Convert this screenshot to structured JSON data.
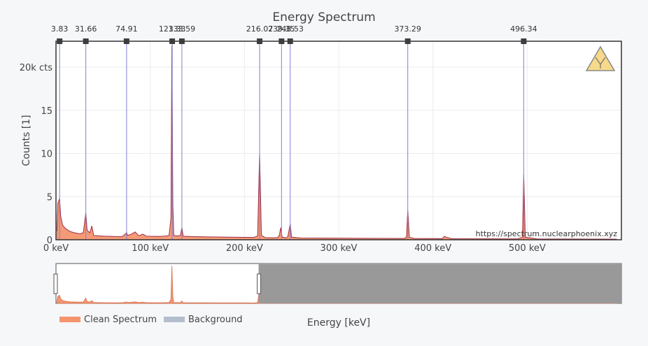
{
  "chart_data": {
    "type": "area",
    "title": "Energy Spectrum",
    "xlabel": "Energy [keV]",
    "ylabel": "Counts [1]",
    "xlim": [
      0,
      600
    ],
    "ylim": [
      0,
      23000
    ],
    "x_ticks": [
      0,
      100,
      200,
      300,
      400,
      500
    ],
    "x_tick_labels": [
      "0 keV",
      "100 keV",
      "200 keV",
      "300 keV",
      "400 keV",
      "500 keV"
    ],
    "y_ticks": [
      0,
      5000,
      10000,
      15000,
      20000
    ],
    "y_tick_labels": [
      "0",
      "5",
      "10",
      "15",
      "20k cts"
    ],
    "grid": true,
    "legend_position": "bottom-left",
    "watermark": "https://spectrum.nuclearphoenix.xyz",
    "series": [
      {
        "name": "Clean Spectrum",
        "color": "#f4956f",
        "x": [
          1,
          2,
          3.83,
          5,
          7,
          10,
          15,
          20,
          25,
          29,
          31.66,
          33,
          36,
          38,
          40,
          45,
          50,
          60,
          70,
          74,
          74.91,
          76,
          80,
          84,
          88,
          92,
          96,
          100,
          110,
          115,
          120,
          122,
          123,
          124,
          125,
          128,
          132,
          133.59,
          135,
          140,
          150,
          160,
          170,
          180,
          190,
          200,
          210,
          214,
          216.07,
          218,
          222,
          230,
          235,
          237,
          238.5,
          240,
          244,
          246,
          248.53,
          250,
          260,
          280,
          300,
          320,
          340,
          360,
          370,
          372,
          373.29,
          375,
          380,
          400,
          410,
          412,
          414,
          420,
          450,
          480,
          490,
          495,
          496.34,
          498,
          510,
          540,
          570,
          595
        ],
        "values": [
          1000,
          4200,
          4800,
          2700,
          1700,
          1300,
          950,
          800,
          700,
          800,
          3100,
          1100,
          800,
          1600,
          500,
          450,
          420,
          380,
          350,
          700,
          850,
          500,
          650,
          900,
          450,
          650,
          420,
          400,
          380,
          420,
          500,
          2500,
          22500,
          4000,
          500,
          450,
          480,
          1400,
          400,
          380,
          350,
          330,
          320,
          300,
          290,
          280,
          270,
          450,
          10000,
          500,
          250,
          230,
          250,
          500,
          1400,
          300,
          220,
          350,
          1800,
          300,
          200,
          190,
          180,
          170,
          160,
          150,
          150,
          350,
          3400,
          300,
          150,
          140,
          130,
          400,
          300,
          120,
          110,
          100,
          100,
          300,
          7600,
          300,
          100,
          90,
          80,
          70
        ]
      },
      {
        "name": "Background",
        "color": "#b4bdcb",
        "x": [],
        "values": []
      }
    ],
    "peak_markers": [
      3.83,
      31.66,
      74.91,
      123.33,
      133.59,
      216.07,
      239.35,
      248.53,
      373.29,
      496.34
    ],
    "peak_labels": [
      "3.83",
      "31.66",
      "74.91",
      "123.33",
      "133.59",
      "216.07",
      "239.35",
      "248.53",
      "373.29",
      "496.34"
    ],
    "range_slider": {
      "selected_range": [
        0,
        215
      ]
    }
  }
}
